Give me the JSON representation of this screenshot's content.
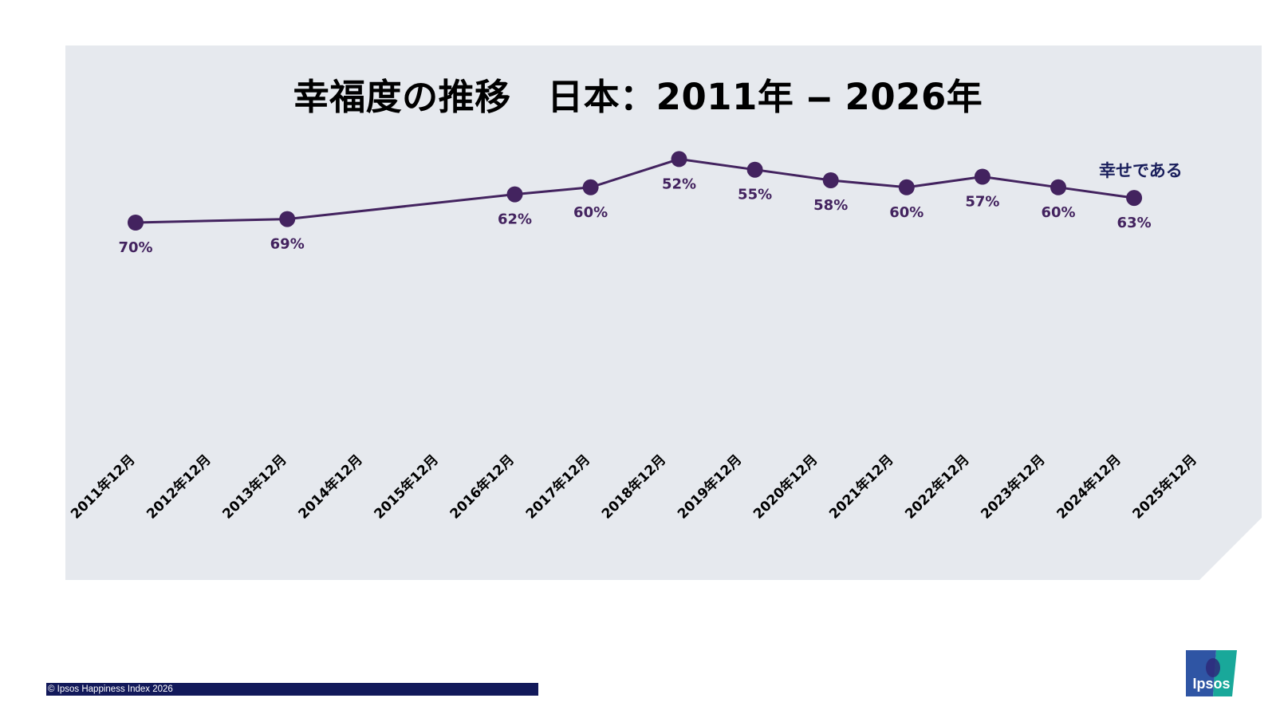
{
  "colors": {
    "panel_background": "#e6e9ee",
    "series_line": "#43235f",
    "legend_text": "#1a1f5c",
    "footer_bar": "#12195a",
    "logo_blue": "#2f55a4",
    "logo_teal": "#19a89a"
  },
  "chart_data": {
    "type": "line",
    "title": "幸福度の推移　日本：2011年 ‒ 2026年",
    "categories": [
      "2011年12月",
      "2012年12月",
      "2013年12月",
      "2014年12月",
      "2015年12月",
      "2016年12月",
      "2017年12月",
      "2018年12月",
      "2019年12月",
      "2020年12月",
      "2021年12月",
      "2022年12月",
      "2023年12月",
      "2024年12月",
      "2025年12月"
    ],
    "series": [
      {
        "name": "幸せである",
        "points": [
          {
            "x": "2011年12月",
            "y": 70,
            "label": "70%"
          },
          {
            "x": "2013年12月",
            "y": 69,
            "label": "69%"
          },
          {
            "x": "2016年12月",
            "y": 62,
            "label": "62%"
          },
          {
            "x": "2017年12月",
            "y": 60,
            "label": "60%"
          },
          {
            "x": "2019年02月",
            "y": 52,
            "label": "52%"
          },
          {
            "x": "2020年02月",
            "y": 55,
            "label": "55%"
          },
          {
            "x": "2021年02月",
            "y": 58,
            "label": "58%"
          },
          {
            "x": "2022年02月",
            "y": 60,
            "label": "60%"
          },
          {
            "x": "2023年02月",
            "y": 57,
            "label": "57%"
          },
          {
            "x": "2024年02月",
            "y": 60,
            "label": "60%"
          },
          {
            "x": "2025年02月",
            "y": 63,
            "label": "63%"
          }
        ]
      }
    ],
    "legend": {
      "position": "top-right"
    },
    "grid": false,
    "y_axis_visible": false
  },
  "footer": {
    "copyright": "© Ipsos Happiness Index 2026"
  },
  "logo": {
    "text": "Ipsos"
  }
}
